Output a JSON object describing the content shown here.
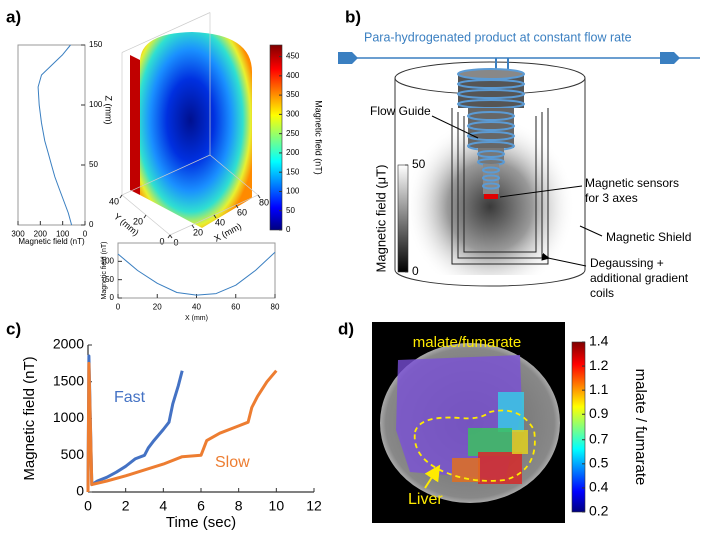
{
  "panel_labels": [
    "a)",
    "b)",
    "c)",
    "d)"
  ],
  "chart_data": [
    {
      "type": "line",
      "xlabel": "Magnetic field (nT)",
      "xlim": [
        300,
        0
      ],
      "ylim": [
        0,
        150
      ],
      "xticks": [
        300,
        200,
        100,
        0
      ],
      "yticks": [
        0,
        50,
        100,
        150
      ],
      "series": [
        {
          "color": "#3a7fc1",
          "x": [
            60,
            75,
            95,
            115,
            135,
            150,
            165,
            180,
            195,
            205,
            210,
            195,
            150,
            100,
            65
          ],
          "values": [
            0,
            10,
            20,
            30,
            40,
            50,
            60,
            70,
            85,
            100,
            115,
            125,
            133,
            142,
            150
          ]
        }
      ]
    },
    {
      "type": "volume",
      "xlabel": "X (mm)",
      "ylabel": "Y (mm)",
      "zlabel": "Z (mm)",
      "xlim": [
        0,
        80
      ],
      "ylim": [
        0,
        40
      ],
      "zlim": [
        0,
        150
      ],
      "xticks": [
        0,
        20,
        40,
        60,
        80
      ],
      "yticks": [
        0,
        20,
        40
      ],
      "colorbar": {
        "label": "Magnetic field (nT)",
        "clim": [
          0,
          480
        ],
        "ticks": [
          0,
          50,
          100,
          150,
          200,
          250,
          300,
          350,
          400,
          450
        ]
      }
    },
    {
      "type": "line",
      "xlabel": "X (mm)",
      "ylabel": "Magnetic field (nT)",
      "xlim": [
        0,
        80
      ],
      "ylim": [
        0,
        150
      ],
      "xticks": [
        0,
        20,
        40,
        60,
        80
      ],
      "yticks": [
        0,
        50,
        100
      ],
      "series": [
        {
          "color": "#3a7fc1",
          "x": [
            0,
            10,
            20,
            30,
            40,
            50,
            60,
            70,
            80
          ],
          "values": [
            120,
            75,
            40,
            15,
            8,
            12,
            35,
            75,
            125
          ]
        }
      ]
    },
    {
      "type": "line",
      "xlabel": "Time (sec)",
      "ylabel": "Magnetic field (nT)",
      "xlim": [
        0,
        12
      ],
      "ylim": [
        0,
        2000
      ],
      "xticks": [
        0,
        2,
        4,
        6,
        8,
        10,
        12
      ],
      "yticks": [
        0,
        500,
        1000,
        1500,
        2000
      ],
      "series": [
        {
          "name": "Fast",
          "color": "#4472c4",
          "x": [
            0,
            0.05,
            0.2,
            0.5,
            1,
            1.5,
            2,
            2.5,
            3,
            3.2,
            3.5,
            4,
            4.3,
            4.5,
            4.8,
            5
          ],
          "values": [
            0,
            1850,
            100,
            150,
            200,
            270,
            350,
            450,
            500,
            600,
            700,
            850,
            950,
            1200,
            1450,
            1650
          ]
        },
        {
          "name": "Slow",
          "color": "#ed7d31",
          "x": [
            0,
            0.05,
            0.2,
            1,
            2,
            3,
            4,
            5,
            6,
            6.3,
            7,
            8,
            8.5,
            8.7,
            9,
            9.5,
            10
          ],
          "values": [
            0,
            1750,
            100,
            150,
            220,
            300,
            380,
            480,
            500,
            700,
            800,
            900,
            950,
            1150,
            1300,
            1500,
            1650
          ]
        }
      ]
    },
    {
      "type": "image",
      "title": "malate/fumarate",
      "annotations": [
        "Liver"
      ],
      "colorbar": {
        "label": "malate / fumarate",
        "clim": [
          0.2,
          1.4
        ],
        "ticks": [
          1.4,
          {
            "value": 1.23,
            "label": "1.2"
          },
          {
            "value": 1.06,
            "label": "1.1"
          },
          {
            "value": 0.89,
            "label": "0.9"
          },
          {
            "value": 0.71,
            "label": "0.7"
          },
          {
            "value": 0.54,
            "label": "0.5"
          },
          {
            "value": 0.37,
            "label": "0.4"
          },
          0.2
        ]
      }
    }
  ],
  "diagram": {
    "title": "Para-hydrogenated product at constant flow rate",
    "labels": [
      "Flow Guide",
      "Magnetic sensors for 3 axes",
      "Magnetic Shield",
      "Degaussing + additional gradient coils"
    ],
    "colorbar": {
      "label": "Magnetic field (μT)",
      "clim": [
        0,
        50
      ],
      "ticks": [
        0,
        50
      ]
    }
  }
}
